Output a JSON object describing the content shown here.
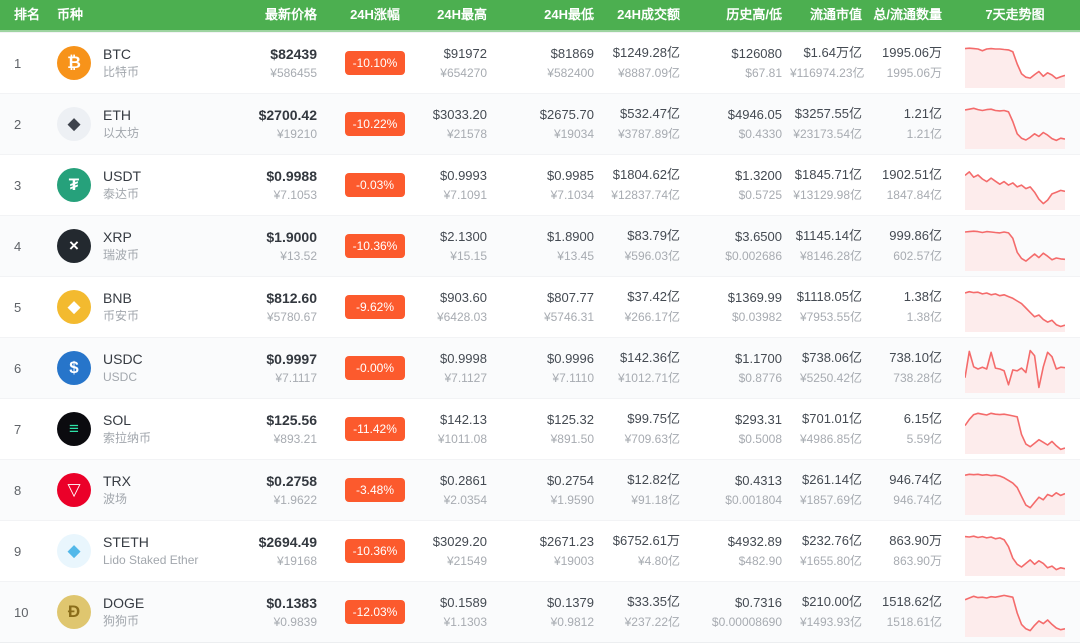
{
  "columns": {
    "rank": "排名",
    "coin": "币种",
    "price": "最新价格",
    "change": "24H涨幅",
    "high": "24H最高",
    "low": "24H最低",
    "volume": "24H成交额",
    "history": "历史高/低",
    "mcap": "流通市值",
    "supply": "总/流通数量",
    "trend": "7天走势图"
  },
  "colors": {
    "header_bg": "#4caf50",
    "badge_bg": "#fc5a2d",
    "spark_line": "#f46b6b",
    "spark_fill": "#fdecec"
  },
  "rows": [
    {
      "rank": "1",
      "symbol": "BTC",
      "name": "比特币",
      "icon_bg": "#f7931a",
      "icon_fg": "#ffffff",
      "icon_glyph": "₿",
      "price_usd": "$82439",
      "price_cny": "¥586455",
      "change": "-10.10%",
      "high_usd": "$91972",
      "high_cny": "¥654270",
      "low_usd": "$81869",
      "low_cny": "¥582400",
      "vol_usd": "$1249.28亿",
      "vol_cny": "¥8887.09亿",
      "hist_high": "$126080",
      "hist_low": "$67.81",
      "mcap_usd": "$1.64万亿",
      "mcap_cny": "¥116974.23亿",
      "supply_total": "1995.06万",
      "supply_circ": "1995.06万",
      "spark": [
        85,
        86,
        85,
        84,
        80,
        84,
        85,
        84,
        84,
        83,
        82,
        78,
        50,
        28,
        20,
        18,
        26,
        33,
        22,
        30,
        25,
        17,
        21,
        24
      ]
    },
    {
      "rank": "2",
      "symbol": "ETH",
      "name": "以太坊",
      "icon_bg": "#edf0f4",
      "icon_fg": "#3e434c",
      "icon_glyph": "◆",
      "price_usd": "$2700.42",
      "price_cny": "¥19210",
      "change": "-10.22%",
      "high_usd": "$3033.20",
      "high_cny": "¥21578",
      "low_usd": "$2675.70",
      "low_cny": "¥19034",
      "vol_usd": "$532.47亿",
      "vol_cny": "¥3787.89亿",
      "hist_high": "$4946.05",
      "hist_low": "$0.4330",
      "mcap_usd": "$3257.55亿",
      "mcap_cny": "¥23173.54亿",
      "supply_total": "1.21亿",
      "supply_circ": "1.21亿",
      "spark": [
        84,
        86,
        88,
        85,
        83,
        85,
        86,
        83,
        82,
        83,
        80,
        58,
        30,
        20,
        16,
        22,
        30,
        24,
        33,
        27,
        19,
        15,
        20,
        18
      ]
    },
    {
      "rank": "3",
      "symbol": "USDT",
      "name": "泰达币",
      "icon_bg": "#26a17b",
      "icon_fg": "#ffffff",
      "icon_glyph": "₮",
      "price_usd": "$0.9988",
      "price_cny": "¥7.1053",
      "change": "-0.03%",
      "high_usd": "$0.9993",
      "high_cny": "¥7.1091",
      "low_usd": "$0.9985",
      "low_cny": "¥7.1034",
      "vol_usd": "$1804.62亿",
      "vol_cny": "¥12837.74亿",
      "hist_high": "$1.3200",
      "hist_low": "$0.5725",
      "mcap_usd": "$1845.71亿",
      "mcap_cny": "¥13129.98亿",
      "supply_total": "1902.51亿",
      "supply_circ": "1847.84亿",
      "spark": [
        74,
        82,
        70,
        75,
        66,
        60,
        68,
        61,
        54,
        60,
        52,
        57,
        48,
        52,
        44,
        48,
        36,
        20,
        10,
        18,
        32,
        36,
        40,
        38
      ]
    },
    {
      "rank": "4",
      "symbol": "XRP",
      "name": "瑞波币",
      "icon_bg": "#23292f",
      "icon_fg": "#ffffff",
      "icon_glyph": "×",
      "price_usd": "$1.9000",
      "price_cny": "¥13.52",
      "change": "-10.36%",
      "high_usd": "$2.1300",
      "high_cny": "¥15.15",
      "low_usd": "$1.8900",
      "low_cny": "¥13.45",
      "vol_usd": "$83.79亿",
      "vol_cny": "¥596.03亿",
      "hist_high": "$3.6500",
      "hist_low": "$0.002686",
      "mcap_usd": "$1145.14亿",
      "mcap_cny": "¥8146.28亿",
      "supply_total": "999.86亿",
      "supply_circ": "602.57亿",
      "spark": [
        84,
        85,
        86,
        85,
        83,
        85,
        84,
        83,
        82,
        84,
        82,
        70,
        38,
        24,
        18,
        26,
        34,
        26,
        36,
        29,
        21,
        25,
        23,
        22
      ]
    },
    {
      "rank": "5",
      "symbol": "BNB",
      "name": "币安币",
      "icon_bg": "#f3ba2f",
      "icon_fg": "#ffffff",
      "icon_glyph": "◆",
      "price_usd": "$812.60",
      "price_cny": "¥5780.67",
      "change": "-9.62%",
      "high_usd": "$903.60",
      "high_cny": "¥6428.03",
      "low_usd": "$807.77",
      "low_cny": "¥5746.31",
      "vol_usd": "$37.42亿",
      "vol_cny": "¥266.17亿",
      "hist_high": "$1369.99",
      "hist_low": "$0.03982",
      "mcap_usd": "$1118.05亿",
      "mcap_cny": "¥7953.55亿",
      "supply_total": "1.38亿",
      "supply_circ": "1.38亿",
      "spark": [
        84,
        87,
        85,
        86,
        82,
        84,
        80,
        82,
        78,
        80,
        76,
        72,
        66,
        60,
        50,
        40,
        30,
        34,
        24,
        18,
        22,
        12,
        8,
        11
      ]
    },
    {
      "rank": "6",
      "symbol": "USDC",
      "name": "USDC",
      "icon_bg": "#2775ca",
      "icon_fg": "#ffffff",
      "icon_glyph": "$",
      "price_usd": "$0.9997",
      "price_cny": "¥7.1117",
      "change": "-0.00%",
      "high_usd": "$0.9998",
      "high_cny": "¥7.1127",
      "low_usd": "$0.9996",
      "low_cny": "¥7.1110",
      "vol_usd": "$142.36亿",
      "vol_cny": "¥1012.71亿",
      "hist_high": "$1.1700",
      "hist_low": "$0.8776",
      "mcap_usd": "$738.06亿",
      "mcap_cny": "¥5250.42亿",
      "supply_total": "738.10亿",
      "supply_circ": "738.28亿",
      "spark": [
        30,
        90,
        55,
        50,
        54,
        50,
        88,
        52,
        50,
        46,
        14,
        48,
        46,
        52,
        42,
        92,
        80,
        8,
        55,
        88,
        78,
        50,
        54,
        53
      ]
    },
    {
      "rank": "7",
      "symbol": "SOL",
      "name": "索拉纳币",
      "icon_bg": "#0b0b0f",
      "icon_fg": "#2de3a7",
      "icon_glyph": "≡",
      "price_usd": "$125.56",
      "price_cny": "¥893.21",
      "change": "-11.42%",
      "high_usd": "$142.13",
      "high_cny": "¥1011.08",
      "low_usd": "$125.32",
      "low_cny": "¥891.50",
      "vol_usd": "$99.75亿",
      "vol_cny": "¥709.63亿",
      "hist_high": "$293.31",
      "hist_low": "$0.5008",
      "mcap_usd": "$701.01亿",
      "mcap_cny": "¥4986.85亿",
      "supply_total": "6.15亿",
      "supply_circ": "5.59亿",
      "spark": [
        60,
        74,
        85,
        88,
        86,
        84,
        88,
        86,
        85,
        86,
        84,
        82,
        80,
        40,
        18,
        12,
        20,
        28,
        22,
        16,
        24,
        14,
        6,
        9
      ]
    },
    {
      "rank": "8",
      "symbol": "TRX",
      "name": "波场",
      "icon_bg": "#eb0029",
      "icon_fg": "#ffffff",
      "icon_glyph": "▽",
      "price_usd": "$0.2758",
      "price_cny": "¥1.9622",
      "change": "-3.48%",
      "high_usd": "$0.2861",
      "high_cny": "¥2.0354",
      "low_usd": "$0.2754",
      "low_cny": "¥1.9590",
      "vol_usd": "$12.82亿",
      "vol_cny": "¥91.18亿",
      "hist_high": "$0.4313",
      "hist_low": "$0.001804",
      "mcap_usd": "$261.14亿",
      "mcap_cny": "¥1857.69亿",
      "supply_total": "946.74亿",
      "supply_circ": "946.74亿",
      "spark": [
        86,
        88,
        87,
        88,
        86,
        87,
        85,
        86,
        84,
        80,
        74,
        68,
        58,
        38,
        18,
        12,
        24,
        36,
        30,
        42,
        38,
        46,
        40,
        44
      ]
    },
    {
      "rank": "9",
      "symbol": "STETH",
      "name": "Lido Staked Ether",
      "icon_bg": "#e9f6fd",
      "icon_fg": "#53b8e9",
      "icon_glyph": "◆",
      "price_usd": "$2694.49",
      "price_cny": "¥19168",
      "change": "-10.36%",
      "high_usd": "$3029.20",
      "high_cny": "¥21549",
      "low_usd": "$2671.23",
      "low_cny": "¥19003",
      "vol_usd": "$6752.61万",
      "vol_cny": "¥4.80亿",
      "hist_high": "$4932.89",
      "hist_low": "$482.90",
      "mcap_usd": "$232.76亿",
      "mcap_cny": "¥1655.80亿",
      "supply_total": "863.90万",
      "supply_circ": "863.90万",
      "spark": [
        85,
        84,
        86,
        83,
        85,
        82,
        84,
        80,
        82,
        78,
        62,
        36,
        22,
        16,
        24,
        32,
        22,
        30,
        24,
        14,
        18,
        10,
        14,
        12
      ]
    },
    {
      "rank": "10",
      "symbol": "DOGE",
      "name": "狗狗币",
      "icon_bg": "#dfc66f",
      "icon_fg": "#8a6d1a",
      "icon_glyph": "Ð",
      "price_usd": "$0.1383",
      "price_cny": "¥0.9839",
      "change": "-12.03%",
      "high_usd": "$0.1589",
      "high_cny": "¥1.1303",
      "low_usd": "$0.1379",
      "low_cny": "¥0.9812",
      "vol_usd": "$33.35亿",
      "vol_cny": "¥237.22亿",
      "hist_high": "$0.7316",
      "hist_low": "$0.00008690",
      "mcap_usd": "$210.00亿",
      "mcap_cny": "¥1493.93亿",
      "supply_total": "1518.62亿",
      "supply_circ": "1518.61亿",
      "spark": [
        80,
        84,
        88,
        85,
        86,
        84,
        87,
        86,
        88,
        90,
        88,
        86,
        50,
        24,
        14,
        10,
        22,
        32,
        26,
        34,
        24,
        16,
        12,
        14
      ]
    }
  ]
}
